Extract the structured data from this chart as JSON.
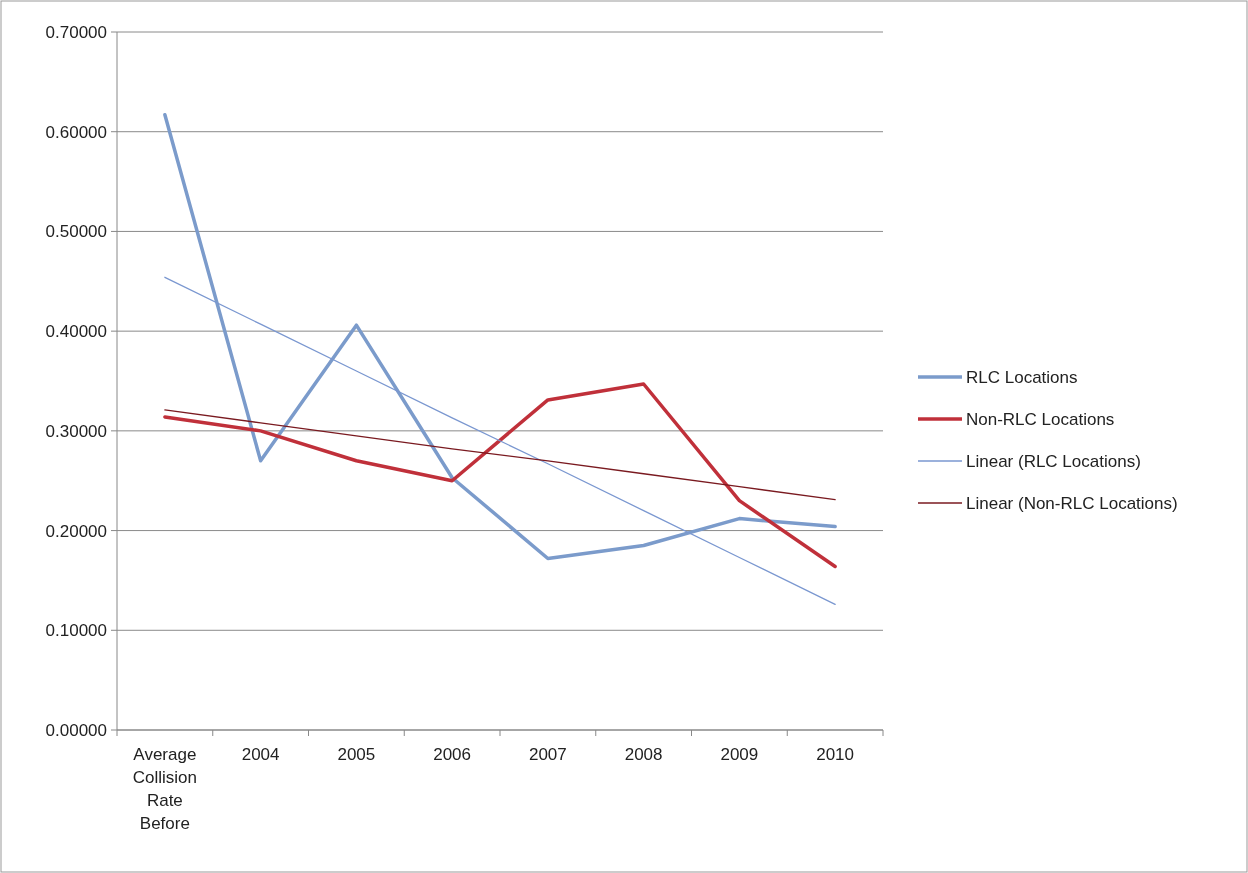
{
  "chart_data": {
    "type": "line",
    "categories": [
      "Average Collision Rate Before",
      "2004",
      "2005",
      "2006",
      "2007",
      "2008",
      "2009",
      "2010"
    ],
    "series": [
      {
        "name": "RLC Locations",
        "color": "#7b9bcb",
        "values": [
          0.617,
          0.27,
          0.406,
          0.253,
          0.172,
          0.185,
          0.212,
          0.204
        ]
      },
      {
        "name": "Non-RLC Locations",
        "color": "#c0303a",
        "values": [
          0.314,
          0.3,
          0.27,
          0.25,
          0.331,
          0.347,
          0.23,
          0.164
        ]
      },
      {
        "name": "Linear (RLC Locations)",
        "color": "#7a97d0",
        "values": [
          0.454,
          0.407,
          0.36,
          0.313,
          0.267,
          0.22,
          0.173,
          0.126
        ]
      },
      {
        "name": "Linear (Non-RLC Locations)",
        "color": "#7a1a20",
        "values": [
          0.321,
          0.308,
          0.295,
          0.282,
          0.27,
          0.257,
          0.244,
          0.231
        ]
      }
    ],
    "ylim": [
      0,
      0.7
    ],
    "yticks": [
      {
        "value": 0,
        "label": "0.00000"
      },
      {
        "value": 0.1,
        "label": "0.10000"
      },
      {
        "value": 0.2,
        "label": "0.20000"
      },
      {
        "value": 0.3,
        "label": "0.30000"
      },
      {
        "value": 0.4,
        "label": "0.40000"
      },
      {
        "value": 0.5,
        "label": "0.50000"
      },
      {
        "value": 0.6,
        "label": "0.60000"
      },
      {
        "value": 0.7,
        "label": "0.70000"
      }
    ],
    "grid": "y",
    "legend": "right",
    "marker": "none",
    "line_style": "solid"
  }
}
